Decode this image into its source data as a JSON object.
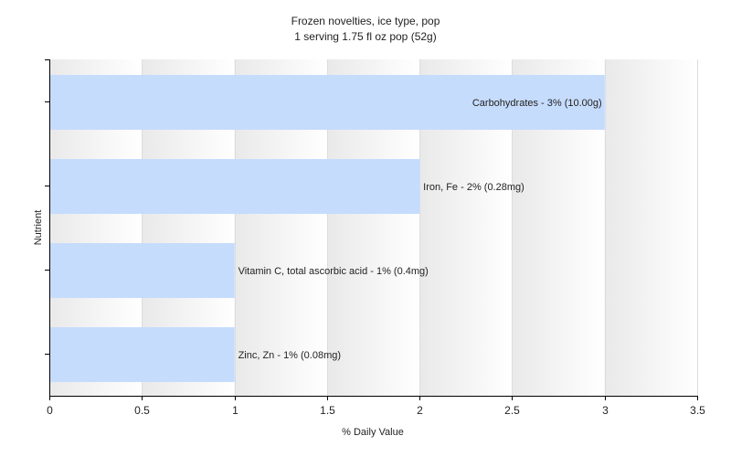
{
  "chart_data": {
    "type": "bar",
    "orientation": "horizontal",
    "title": "Frozen novelties, ice type, pop",
    "subtitle": "1 serving 1.75 fl oz pop (52g)",
    "xlabel": "% Daily Value",
    "ylabel": "Nutrient",
    "xlim": [
      0,
      3.5
    ],
    "xticks": [
      "0",
      "0.5",
      "1",
      "1.5",
      "2",
      "2.5",
      "3",
      "3.5"
    ],
    "xtick_values": [
      0,
      0.5,
      1,
      1.5,
      2,
      2.5,
      3,
      3.5
    ],
    "grid": true,
    "bar_color": "#c6dcfd",
    "categories": [
      "Carbohydrates",
      "Iron, Fe",
      "Vitamin C, total ascorbic acid",
      "Zinc, Zn"
    ],
    "values": [
      3,
      2,
      1,
      1
    ],
    "data_labels": [
      "Carbohydrates - 3% (10.00g)",
      "Iron, Fe - 2% (0.28mg)",
      "Vitamin C, total ascorbic acid - 1% (0.4mg)",
      "Zinc, Zn - 1% (0.08mg)"
    ]
  }
}
